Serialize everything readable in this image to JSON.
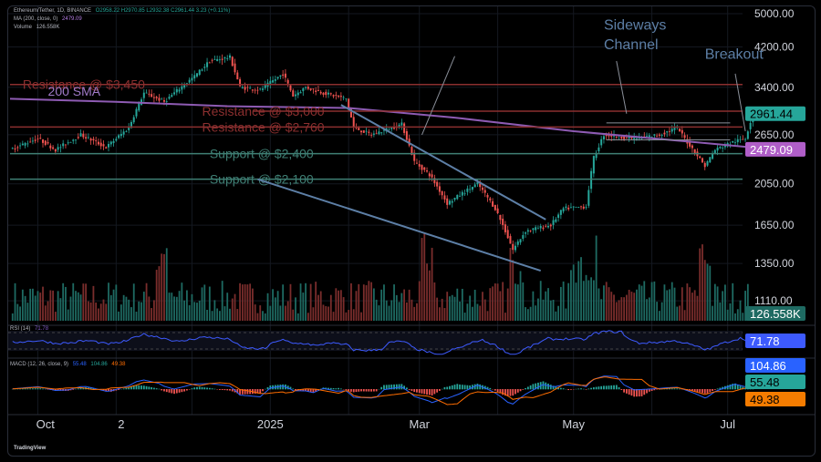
{
  "header": {
    "symbol": "Ethereum/Tether, 1D, BINANCE",
    "ohlc": "O2958.22  H2970.85  L2932.38  C2961.44  3.23 (+0.11%)",
    "ma_label": "MA (200, close, 0)",
    "ma_value": "2479.09",
    "volume_label": "Volume",
    "volume_value": "126.558K"
  },
  "indicators": {
    "rsi_label": "RSI (14)",
    "rsi_value": "71.78",
    "macd_label": "MACD (12, 26, close, 9)",
    "macd_v1": "55.48",
    "macd_v2": "104.86",
    "macd_v3": "49.38"
  },
  "watermark": "TradingView",
  "colors": {
    "up": "#26a69a",
    "down": "#ef5350",
    "sma": "#8e5bb3",
    "resistance": "#8b2f2f",
    "support": "#3f7f74",
    "trend": "#5d7fa6",
    "rsi": "#3d5afe",
    "macd_line": "#2962ff",
    "signal_line": "#ff6d00"
  },
  "chart_data": {
    "type": "candlestick",
    "title": "Ethereum/Tether, 1D, BINANCE",
    "y_scale": "log",
    "ylim": [
      1000,
      5000
    ],
    "y_ticks": [
      "5000.00",
      "4200.00",
      "3400.00",
      "2650.00",
      "2050.00",
      "1650.00",
      "1350.00",
      "1110.00"
    ],
    "x_ticks": [
      "Oct",
      "2",
      "2025",
      "Mar",
      "May",
      "Jul"
    ],
    "price_badges": {
      "last": "2961.44",
      "sma": "2479.09",
      "volume": "126.558K"
    },
    "rsi_badge": "71.78",
    "macd_badges": [
      "104.86",
      "55.48",
      "49.38"
    ],
    "anchors": [
      [
        "2024-09-20",
        2450
      ],
      [
        "2024-10-01",
        2600
      ],
      [
        "2024-10-08",
        2450
      ],
      [
        "2024-10-18",
        2650
      ],
      [
        "2024-10-28",
        2480
      ],
      [
        "2024-11-06",
        2750
      ],
      [
        "2024-11-12",
        3300
      ],
      [
        "2024-11-20",
        3150
      ],
      [
        "2024-12-02",
        3600
      ],
      [
        "2024-12-08",
        3900
      ],
      [
        "2024-12-16",
        3980
      ],
      [
        "2024-12-20",
        3400
      ],
      [
        "2024-12-28",
        3350
      ],
      [
        "2025-01-06",
        3650
      ],
      [
        "2025-01-10",
        3250
      ],
      [
        "2025-01-15",
        3400
      ],
      [
        "2025-01-22",
        3300
      ],
      [
        "2025-01-31",
        3200
      ],
      [
        "2025-02-03",
        2750
      ],
      [
        "2025-02-10",
        2650
      ],
      [
        "2025-02-18",
        2750
      ],
      [
        "2025-02-22",
        2800
      ],
      [
        "2025-02-27",
        2300
      ],
      [
        "2025-03-05",
        2150
      ],
      [
        "2025-03-12",
        1850
      ],
      [
        "2025-03-24",
        2050
      ],
      [
        "2025-03-31",
        1800
      ],
      [
        "2025-04-07",
        1450
      ],
      [
        "2025-04-12",
        1600
      ],
      [
        "2025-04-22",
        1650
      ],
      [
        "2025-04-27",
        1800
      ],
      [
        "2025-05-06",
        1820
      ],
      [
        "2025-05-09",
        2350
      ],
      [
        "2025-05-13",
        2650
      ],
      [
        "2025-05-25",
        2600
      ],
      [
        "2025-06-04",
        2650
      ],
      [
        "2025-06-11",
        2750
      ],
      [
        "2025-06-15",
        2550
      ],
      [
        "2025-06-22",
        2250
      ],
      [
        "2025-06-26",
        2450
      ],
      [
        "2025-07-03",
        2550
      ],
      [
        "2025-07-08",
        2600
      ],
      [
        "2025-07-11",
        2961
      ]
    ],
    "sma200": [
      [
        "2024-09-20",
        3200
      ],
      [
        "2024-11-01",
        3150
      ],
      [
        "2024-12-15",
        3080
      ],
      [
        "2025-02-01",
        3050
      ],
      [
        "2025-03-15",
        2900
      ],
      [
        "2025-05-01",
        2700
      ],
      [
        "2025-06-15",
        2560
      ],
      [
        "2025-07-11",
        2479
      ]
    ],
    "levels": [
      {
        "label": "Resistance @ $3,450",
        "value": 3450,
        "kind": "resistance",
        "x_start": "2024-09-20",
        "label_at": "2024-09-25"
      },
      {
        "label": "Resistance @ $3,000",
        "value": 3000,
        "kind": "resistance",
        "x_start": "2024-12-25",
        "label_at": "2024-12-05"
      },
      {
        "label": "Resistance @ $2,760",
        "value": 2760,
        "kind": "resistance",
        "x_start": "2024-09-20",
        "label_at": "2024-12-05"
      },
      {
        "label": "Support @ $2,400",
        "value": 2400,
        "kind": "support",
        "x_start": "2024-09-20",
        "label_at": "2024-12-08"
      },
      {
        "label": "Support @ $2,100",
        "value": 2100,
        "kind": "support",
        "x_start": "2024-09-20",
        "label_at": "2024-12-08"
      }
    ],
    "sma_label": "200 SMA",
    "annotations": [
      {
        "label": "Sideways",
        "label2": "Channel",
        "target": [
          "2025-05-22",
          2960
        ]
      },
      {
        "label": "Breakout",
        "target": [
          "2025-07-08",
          2700
        ]
      }
    ],
    "trend_lines": [
      [
        [
          "2025-01-29",
          3100
        ],
        [
          "2025-04-20",
          1700
        ]
      ],
      [
        [
          "2024-12-27",
          2100
        ],
        [
          "2025-04-18",
          1300
        ]
      ]
    ]
  }
}
